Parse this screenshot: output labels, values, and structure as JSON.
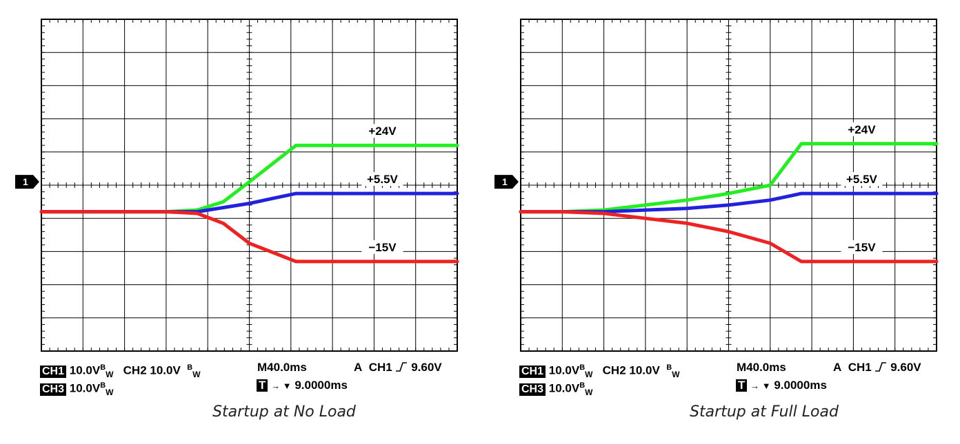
{
  "chart_data": [
    {
      "type": "line",
      "title": "Startup at No Load",
      "xlabel": "",
      "ylabel": "",
      "time_per_div": "M40.0ms",
      "trigger_delay": "9.0000ms",
      "trigger_channel": "CH1",
      "trigger_level": "9.60V",
      "grid": true,
      "xlim": [
        0,
        400
      ],
      "ylim_div": [
        -4,
        4
      ],
      "ground_marker": "1",
      "series": [
        {
          "name": "+24V",
          "color": "#22ee22",
          "x": [
            0,
            60,
            120,
            150,
            175,
            200,
            245,
            400
          ],
          "y": [
            0.0,
            0.0,
            0.0,
            0.05,
            0.3,
            0.9,
            2.0,
            2.0
          ]
        },
        {
          "name": "+5.5V",
          "color": "#2222dd",
          "x": [
            0,
            60,
            120,
            150,
            200,
            245,
            400
          ],
          "y": [
            0.0,
            0.0,
            0.0,
            0.0,
            0.25,
            0.55,
            0.55
          ]
        },
        {
          "name": "−15V",
          "color": "#ee2222",
          "x": [
            0,
            60,
            120,
            150,
            175,
            200,
            245,
            400
          ],
          "y": [
            0.0,
            0.0,
            0.0,
            -0.05,
            -0.35,
            -0.95,
            -1.5,
            -1.5
          ]
        }
      ],
      "labels": [
        "+24V",
        "+5.5V",
        "−15V"
      ],
      "readout": {
        "ch1": "CH1",
        "ch1_scale": "10.0V",
        "ch2": "CH2",
        "ch2_scale": "10.0V",
        "ch3": "CH3",
        "ch3_scale": "10.0V",
        "bw_b": "B",
        "bw_w": "W",
        "timebase": "M40.0ms",
        "trig_mode": "A",
        "trig_ch": "CH1",
        "trig_level": "9.60V",
        "t_box": "T",
        "t_arrow": "→ ▼",
        "t_delay": "9.0000ms"
      }
    },
    {
      "type": "line",
      "title": "Startup at Full Load",
      "xlabel": "",
      "ylabel": "",
      "time_per_div": "M40.0ms",
      "trigger_delay": "9.0000ms",
      "trigger_channel": "CH1",
      "trigger_level": "9.60V",
      "grid": true,
      "xlim": [
        0,
        400
      ],
      "ylim_div": [
        -4,
        4
      ],
      "ground_marker": "1",
      "series": [
        {
          "name": "+24V",
          "color": "#22ee22",
          "x": [
            0,
            40,
            80,
            120,
            160,
            200,
            240,
            270,
            400
          ],
          "y": [
            0.0,
            0.0,
            0.05,
            0.2,
            0.35,
            0.55,
            0.8,
            2.05,
            2.05
          ]
        },
        {
          "name": "+5.5V",
          "color": "#2222dd",
          "x": [
            0,
            80,
            160,
            200,
            240,
            270,
            400
          ],
          "y": [
            0.0,
            0.0,
            0.1,
            0.2,
            0.35,
            0.55,
            0.55
          ]
        },
        {
          "name": "−15V",
          "color": "#ee2222",
          "x": [
            0,
            40,
            80,
            120,
            160,
            200,
            240,
            270,
            400
          ],
          "y": [
            0.0,
            0.0,
            -0.05,
            -0.2,
            -0.35,
            -0.6,
            -0.95,
            -1.5,
            -1.5
          ]
        }
      ],
      "labels": [
        "+24V",
        "+5.5V",
        "−15V"
      ],
      "readout": {
        "ch1": "CH1",
        "ch1_scale": "10.0V",
        "ch2": "CH2",
        "ch2_scale": "10.0V",
        "ch3": "CH3",
        "ch3_scale": "10.0V",
        "bw_b": "B",
        "bw_w": "W",
        "timebase": "M40.0ms",
        "trig_mode": "A",
        "trig_ch": "CH1",
        "trig_level": "9.60V",
        "t_box": "T",
        "t_arrow": "→ ▼",
        "t_delay": "9.0000ms"
      }
    }
  ]
}
